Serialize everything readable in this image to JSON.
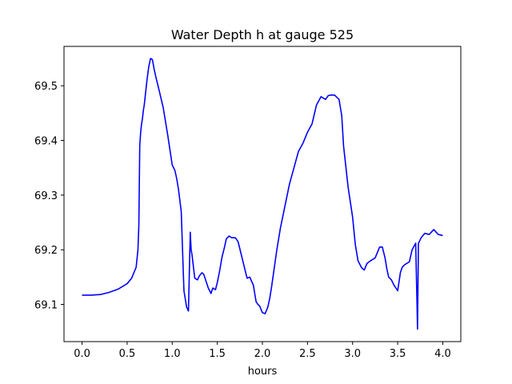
{
  "chart_data": {
    "type": "line",
    "title": "Water Depth h at gauge 525",
    "xlabel": "hours",
    "ylabel": "",
    "xlim": [
      -0.2,
      4.2
    ],
    "ylim": [
      69.032,
      69.572
    ],
    "xticks": [
      "0.0",
      "0.5",
      "1.0",
      "1.5",
      "2.0",
      "2.5",
      "3.0",
      "3.5",
      "4.0"
    ],
    "yticks": [
      "69.1",
      "69.2",
      "69.3",
      "69.4",
      "69.5"
    ],
    "grid": false,
    "legend": "none",
    "series": [
      {
        "color": "#0000ff",
        "x": [
          0.0,
          0.1,
          0.2,
          0.3,
          0.4,
          0.5,
          0.55,
          0.6,
          0.62,
          0.63,
          0.64,
          0.65,
          0.66,
          0.67,
          0.68,
          0.69,
          0.7,
          0.72,
          0.74,
          0.76,
          0.78,
          0.8,
          0.82,
          0.85,
          0.9,
          0.95,
          1.0,
          1.03,
          1.05,
          1.07,
          1.1,
          1.13,
          1.15,
          1.16,
          1.18,
          1.2,
          1.21,
          1.22,
          1.25,
          1.28,
          1.3,
          1.33,
          1.35,
          1.38,
          1.4,
          1.43,
          1.45,
          1.48,
          1.5,
          1.53,
          1.55,
          1.58,
          1.6,
          1.63,
          1.66,
          1.7,
          1.73,
          1.76,
          1.8,
          1.83,
          1.86,
          1.9,
          1.93,
          1.95,
          1.97,
          2.0,
          2.03,
          2.06,
          2.08,
          2.1,
          2.13,
          2.16,
          2.2,
          2.25,
          2.3,
          2.35,
          2.4,
          2.45,
          2.5,
          2.55,
          2.6,
          2.65,
          2.7,
          2.73,
          2.76,
          2.8,
          2.85,
          2.88,
          2.9,
          2.95,
          3.0,
          3.03,
          3.06,
          3.1,
          3.13,
          3.16,
          3.2,
          3.25,
          3.3,
          3.33,
          3.36,
          3.38,
          3.4,
          3.43,
          3.46,
          3.5,
          3.53,
          3.55,
          3.58,
          3.6,
          3.63,
          3.66,
          3.7,
          3.72,
          3.73,
          3.74,
          3.76,
          3.8,
          3.85,
          3.9,
          3.95,
          4.0
        ],
        "y": [
          69.117,
          69.117,
          69.118,
          69.122,
          69.128,
          69.138,
          69.148,
          69.168,
          69.2,
          69.245,
          69.39,
          69.415,
          69.43,
          69.44,
          69.455,
          69.465,
          69.48,
          69.51,
          69.535,
          69.55,
          69.548,
          69.53,
          69.515,
          69.495,
          69.46,
          69.41,
          69.355,
          69.345,
          69.33,
          69.31,
          69.27,
          69.125,
          69.105,
          69.095,
          69.088,
          69.232,
          69.2,
          69.19,
          69.148,
          69.145,
          69.152,
          69.158,
          69.155,
          69.14,
          69.13,
          69.12,
          69.13,
          69.127,
          69.14,
          69.165,
          69.185,
          69.205,
          69.22,
          69.225,
          69.222,
          69.222,
          69.215,
          69.195,
          69.168,
          69.148,
          69.15,
          69.135,
          69.105,
          69.1,
          69.097,
          69.085,
          69.083,
          69.095,
          69.11,
          69.13,
          69.165,
          69.2,
          69.24,
          69.28,
          69.32,
          69.35,
          69.38,
          69.395,
          69.415,
          69.43,
          69.465,
          69.48,
          69.475,
          69.482,
          69.483,
          69.483,
          69.475,
          69.445,
          69.39,
          69.315,
          69.26,
          69.21,
          69.18,
          69.167,
          69.163,
          69.175,
          69.18,
          69.185,
          69.205,
          69.205,
          69.185,
          69.165,
          69.15,
          69.145,
          69.135,
          69.125,
          69.158,
          69.168,
          69.173,
          69.175,
          69.178,
          69.2,
          69.212,
          69.055,
          69.212,
          69.215,
          69.222,
          69.23,
          69.228,
          69.237,
          69.228,
          69.226
        ]
      }
    ]
  }
}
